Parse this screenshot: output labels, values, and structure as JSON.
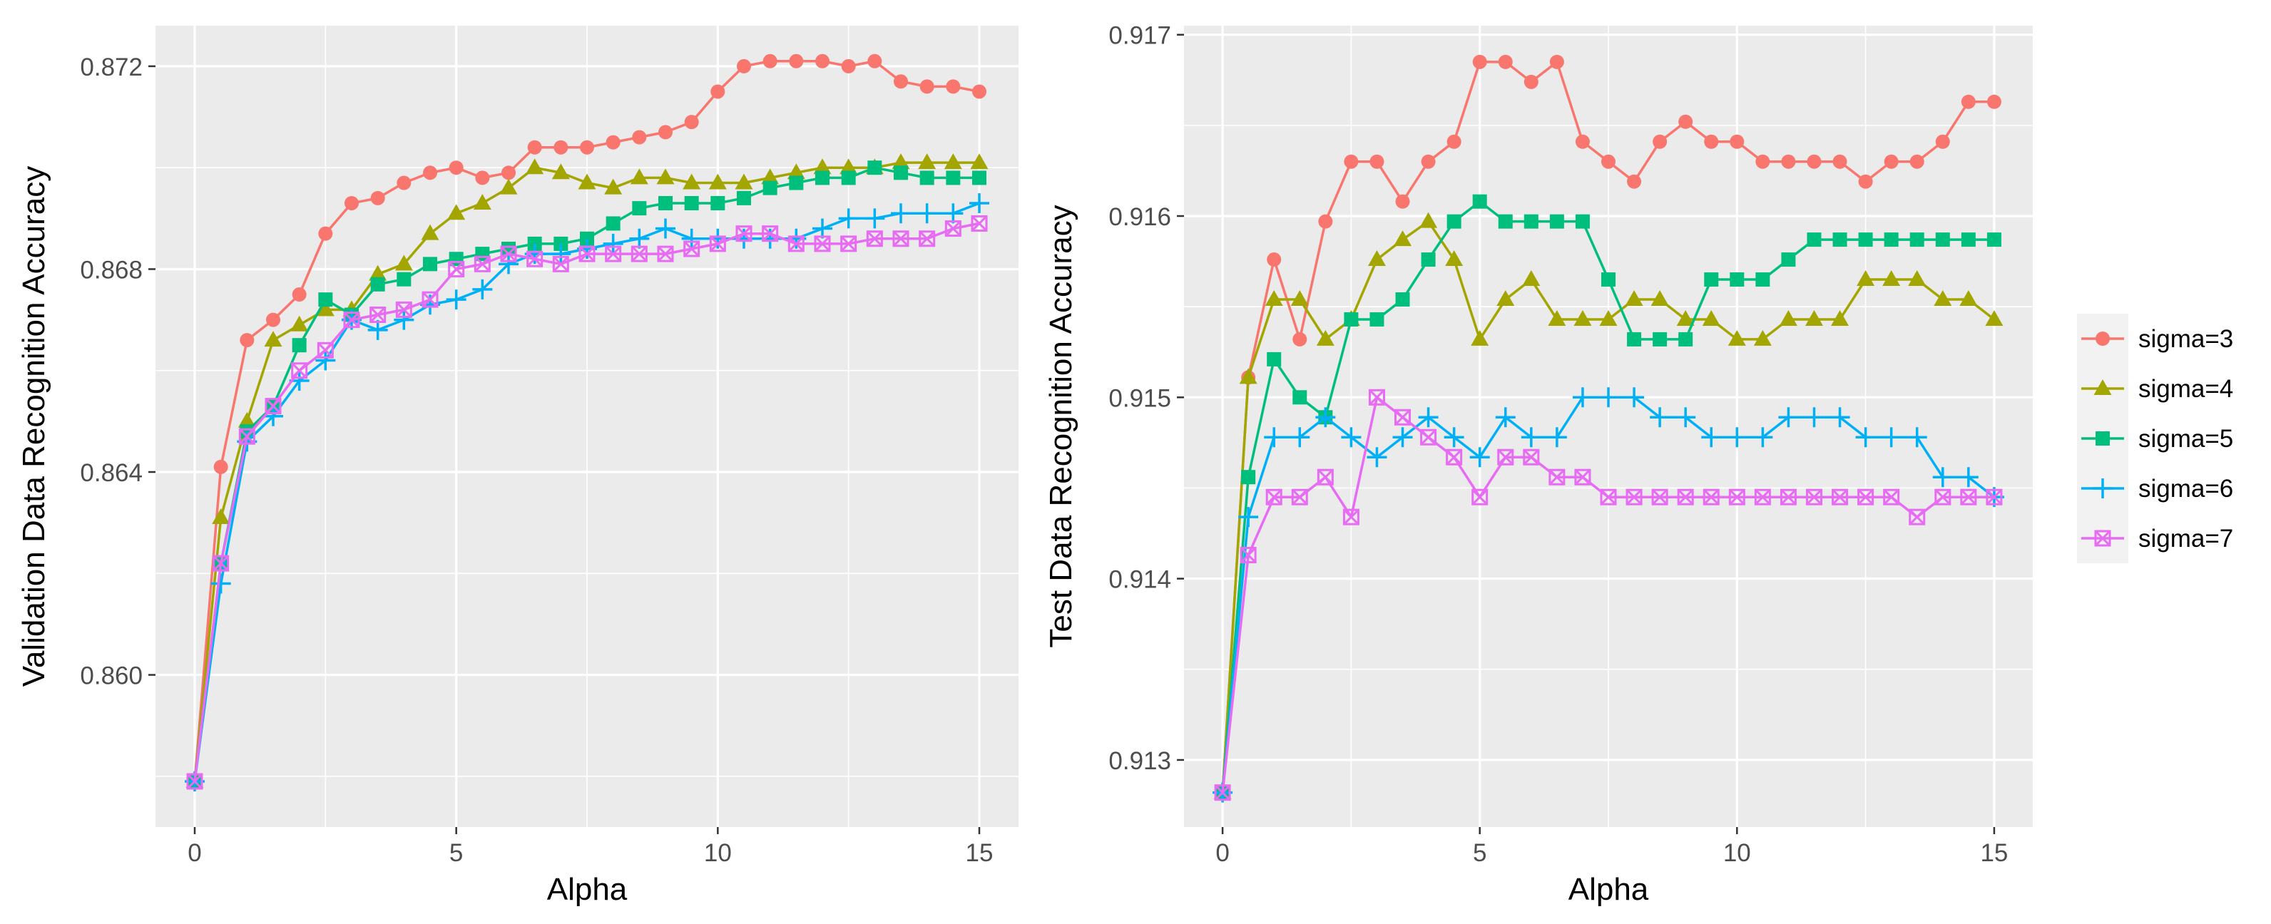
{
  "legend": {
    "colors": [
      "#F8766D",
      "#A3A500",
      "#00BF7D",
      "#00B0F6",
      "#E76BF3"
    ],
    "shapes": [
      "circle",
      "triangle",
      "square",
      "plus",
      "square-x"
    ]
  },
  "chart_data": [
    {
      "type": "line",
      "xlabel": "Alpha",
      "ylabel": "Validation Data Recognition Accuracy",
      "xlim": [
        -0.75,
        15.75
      ],
      "ylim": [
        0.857,
        0.8728
      ],
      "xticks": [
        0,
        5,
        10,
        15
      ],
      "xtick_labels": [
        "0",
        "5",
        "10",
        "15"
      ],
      "yticks": [
        0.86,
        0.864,
        0.868,
        0.872
      ],
      "ytick_labels": [
        "0.860",
        "0.864",
        "0.868",
        "0.872"
      ],
      "grid": true,
      "x": [
        0,
        0.5,
        1,
        1.5,
        2,
        2.5,
        3,
        3.5,
        4,
        4.5,
        5,
        5.5,
        6,
        6.5,
        7,
        7.5,
        8,
        8.5,
        9,
        9.5,
        10,
        10.5,
        11,
        11.5,
        12,
        12.5,
        13,
        13.5,
        14,
        14.5,
        15
      ],
      "series": [
        {
          "name": "sigma=3",
          "values": [
            0.8579,
            0.8641,
            0.8666,
            0.867,
            0.8675,
            0.8687,
            0.8693,
            0.8694,
            0.8697,
            0.8699,
            0.87,
            0.8698,
            0.8699,
            0.8704,
            0.8704,
            0.8704,
            0.8705,
            0.8706,
            0.8707,
            0.8709,
            0.8715,
            0.872,
            0.8721,
            0.8721,
            0.8721,
            0.872,
            0.8721,
            0.8717,
            0.8716,
            0.8716,
            0.8715
          ]
        },
        {
          "name": "sigma=4",
          "values": [
            0.8579,
            0.8631,
            0.865,
            0.8666,
            0.8669,
            0.8672,
            0.8672,
            0.8679,
            0.8681,
            0.8687,
            0.8691,
            0.8693,
            0.8696,
            0.87,
            0.8699,
            0.8697,
            0.8696,
            0.8698,
            0.8698,
            0.8697,
            0.8697,
            0.8697,
            0.8698,
            0.8699,
            0.87,
            0.87,
            0.87,
            0.8701,
            0.8701,
            0.8701,
            0.8701
          ]
        },
        {
          "name": "sigma=5",
          "values": [
            0.8579,
            0.8622,
            0.8648,
            0.8653,
            0.8665,
            0.8674,
            0.8671,
            0.8677,
            0.8678,
            0.8681,
            0.8682,
            0.8683,
            0.8684,
            0.8685,
            0.8685,
            0.8686,
            0.8689,
            0.8692,
            0.8693,
            0.8693,
            0.8693,
            0.8694,
            0.8696,
            0.8697,
            0.8698,
            0.8698,
            0.87,
            0.8699,
            0.8698,
            0.8698,
            0.8698
          ]
        },
        {
          "name": "sigma=6",
          "values": [
            0.8579,
            0.8618,
            0.8646,
            0.8651,
            0.8658,
            0.8662,
            0.867,
            0.8668,
            0.867,
            0.8673,
            0.8674,
            0.8676,
            0.8681,
            0.8683,
            0.8683,
            0.8684,
            0.8685,
            0.8686,
            0.8688,
            0.8686,
            0.8686,
            0.8686,
            0.8686,
            0.8686,
            0.8688,
            0.869,
            0.869,
            0.8691,
            0.8691,
            0.8691,
            0.8693
          ]
        },
        {
          "name": "sigma=7",
          "values": [
            0.8579,
            0.8622,
            0.8647,
            0.8653,
            0.866,
            0.8664,
            0.867,
            0.8671,
            0.8672,
            0.8674,
            0.868,
            0.8681,
            0.8683,
            0.8682,
            0.8681,
            0.8683,
            0.8683,
            0.8683,
            0.8683,
            0.8684,
            0.8685,
            0.8687,
            0.8687,
            0.8685,
            0.8685,
            0.8685,
            0.8686,
            0.8686,
            0.8686,
            0.8688,
            0.8689
          ]
        }
      ]
    },
    {
      "type": "line",
      "xlabel": "Alpha",
      "ylabel": "Test Data Recognition Accuracy",
      "xlim": [
        -0.75,
        15.75
      ],
      "ylim": [
        0.91263,
        0.91705
      ],
      "xticks": [
        0,
        5,
        10,
        15
      ],
      "xtick_labels": [
        "0",
        "5",
        "10",
        "15"
      ],
      "yticks": [
        0.913,
        0.914,
        0.915,
        0.916,
        0.917
      ],
      "ytick_labels": [
        "0.913",
        "0.914",
        "0.915",
        "0.916",
        "0.917"
      ],
      "grid": true,
      "x": [
        0,
        0.5,
        1,
        1.5,
        2,
        2.5,
        3,
        3.5,
        4,
        4.5,
        5,
        5.5,
        6,
        6.5,
        7,
        7.5,
        8,
        8.5,
        9,
        9.5,
        10,
        10.5,
        11,
        11.5,
        12,
        12.5,
        13,
        13.5,
        14,
        14.5,
        15
      ],
      "series": [
        {
          "name": "sigma=3",
          "values": [
            0.91282,
            0.91511,
            0.91576,
            0.91532,
            0.91597,
            0.9163,
            0.9163,
            0.91608,
            0.9163,
            0.91641,
            0.91685,
            0.91685,
            0.91674,
            0.91685,
            0.91641,
            0.9163,
            0.91619,
            0.91641,
            0.91652,
            0.91641,
            0.91641,
            0.9163,
            0.9163,
            0.9163,
            0.9163,
            0.91619,
            0.9163,
            0.9163,
            0.91641,
            0.91663,
            0.91663
          ]
        },
        {
          "name": "sigma=4",
          "values": [
            0.91282,
            0.91511,
            0.91554,
            0.91554,
            0.91532,
            0.91543,
            0.91576,
            0.91587,
            0.91597,
            0.91576,
            0.91532,
            0.91554,
            0.91565,
            0.91543,
            0.91543,
            0.91543,
            0.91554,
            0.91554,
            0.91543,
            0.91543,
            0.91532,
            0.91532,
            0.91543,
            0.91543,
            0.91543,
            0.91565,
            0.91565,
            0.91565,
            0.91554,
            0.91554,
            0.91543
          ]
        },
        {
          "name": "sigma=5",
          "values": [
            0.91282,
            0.91456,
            0.91521,
            0.915,
            0.91489,
            0.91543,
            0.91543,
            0.91554,
            0.91576,
            0.91597,
            0.91608,
            0.91597,
            0.91597,
            0.91597,
            0.91597,
            0.91565,
            0.91532,
            0.91532,
            0.91532,
            0.91565,
            0.91565,
            0.91565,
            0.91576,
            0.91587,
            0.91587,
            0.91587,
            0.91587,
            0.91587,
            0.91587,
            0.91587,
            0.91587
          ]
        },
        {
          "name": "sigma=6",
          "values": [
            0.91282,
            0.91434,
            0.91478,
            0.91478,
            0.91489,
            0.91478,
            0.91467,
            0.91478,
            0.91489,
            0.91478,
            0.91467,
            0.91489,
            0.91478,
            0.91478,
            0.915,
            0.915,
            0.915,
            0.91489,
            0.91489,
            0.91478,
            0.91478,
            0.91478,
            0.91489,
            0.91489,
            0.91489,
            0.91478,
            0.91478,
            0.91478,
            0.91456,
            0.91456,
            0.91445
          ]
        },
        {
          "name": "sigma=7",
          "values": [
            0.91282,
            0.91413,
            0.91445,
            0.91445,
            0.91456,
            0.91434,
            0.915,
            0.91489,
            0.91478,
            0.91467,
            0.91445,
            0.91467,
            0.91467,
            0.91456,
            0.91456,
            0.91445,
            0.91445,
            0.91445,
            0.91445,
            0.91445,
            0.91445,
            0.91445,
            0.91445,
            0.91445,
            0.91445,
            0.91445,
            0.91445,
            0.91434,
            0.91445,
            0.91445,
            0.91445
          ]
        }
      ]
    }
  ]
}
